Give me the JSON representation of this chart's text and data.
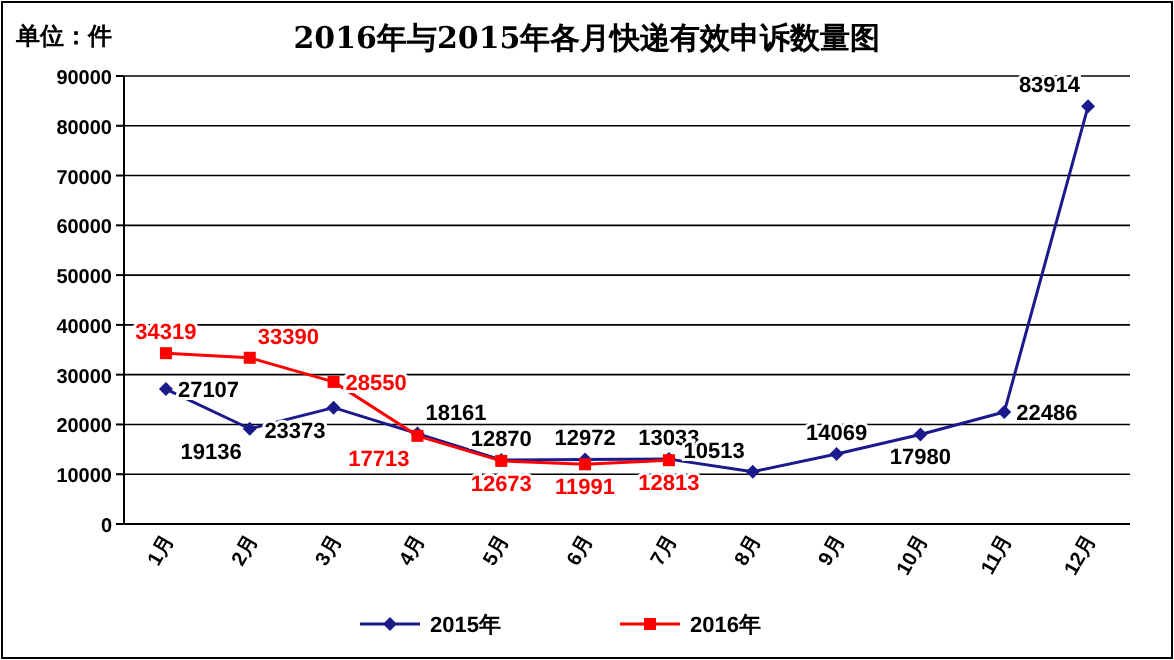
{
  "chart_data": {
    "type": "line",
    "title": "2016年与2015年各月快递有效申诉数量图",
    "annotations": [
      "单位：件"
    ],
    "categories": [
      "1月",
      "2月",
      "3月",
      "4月",
      "5月",
      "6月",
      "7月",
      "8月",
      "9月",
      "10月",
      "11月",
      "12月"
    ],
    "series": [
      {
        "name": "2015年",
        "color": "#1a1a8c",
        "marker": "diamond",
        "values": [
          27107,
          19136,
          23373,
          18161,
          12870,
          12972,
          13033,
          10513,
          14069,
          17980,
          22486,
          83914
        ]
      },
      {
        "name": "2016年",
        "color": "#ff0000",
        "marker": "square",
        "values": [
          34319,
          33390,
          28550,
          17713,
          12673,
          11991,
          12813,
          null,
          null,
          null,
          null,
          null
        ]
      }
    ],
    "ylim": [
      0,
      90000
    ],
    "yticks": [
      0,
      10000,
      20000,
      30000,
      40000,
      50000,
      60000,
      70000,
      80000,
      90000
    ],
    "grid": "y",
    "legend": "bottom",
    "data_labels": true,
    "line_style": "solid"
  }
}
